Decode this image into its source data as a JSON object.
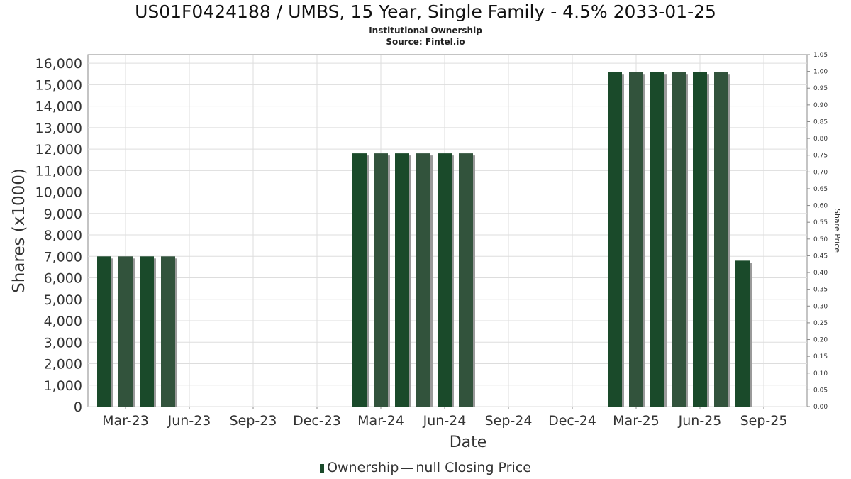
{
  "header": {
    "title": "US01F0424188 / UMBS, 15 Year, Single Family - 4.5% 2033-01-25",
    "subtitle": "Institutional Ownership",
    "source": "Source: Fintel.io"
  },
  "legend": {
    "ownership_label": "Ownership",
    "price_label": "null Closing Price"
  },
  "colors": {
    "bar_dark": "#1a4a2a",
    "bar_light": "#32533c",
    "bar_shadow": "#9a9a9a",
    "grid": "#dddddd",
    "axis": "#888888"
  },
  "chart_data": {
    "type": "bar",
    "title": "US01F0424188 / UMBS, 15 Year, Single Family - 4.5% 2033-01-25",
    "xlabel": "Date",
    "ylabel": "Shares (x1000)",
    "y2label": "Share Price",
    "ylim": [
      0,
      16400
    ],
    "y2lim": [
      0,
      1.05
    ],
    "grid": true,
    "legend_position": "bottom",
    "x_ticks": [
      "Mar-23",
      "Jun-23",
      "Sep-23",
      "Dec-23",
      "Mar-24",
      "Jun-24",
      "Sep-24",
      "Dec-24",
      "Mar-25",
      "Jun-25",
      "Sep-25"
    ],
    "y_ticks": [
      "0",
      "1,000",
      "2,000",
      "3,000",
      "4,000",
      "5,000",
      "6,000",
      "7,000",
      "8,000",
      "9,000",
      "10,000",
      "11,000",
      "12,000",
      "13,000",
      "14,000",
      "15,000",
      "16,000"
    ],
    "y2_ticks": [
      "0.00",
      "0.05",
      "0.10",
      "0.15",
      "0.20",
      "0.25",
      "0.30",
      "0.35",
      "0.40",
      "0.45",
      "0.50",
      "0.55",
      "0.60",
      "0.65",
      "0.70",
      "0.75",
      "0.80",
      "0.85",
      "0.90",
      "0.95",
      "1.00",
      "1.05"
    ],
    "series": [
      {
        "name": "Ownership",
        "x": [
          "2023-02",
          "2023-03",
          "2023-04",
          "2023-05",
          "2024-02",
          "2024-03",
          "2024-04",
          "2024-05",
          "2024-06",
          "2024-07",
          "2025-02",
          "2025-03",
          "2025-04",
          "2025-05",
          "2025-06",
          "2025-07",
          "2025-08"
        ],
        "values": [
          7000,
          7000,
          7000,
          7000,
          11800,
          11800,
          11800,
          11800,
          11800,
          11800,
          15600,
          15600,
          15600,
          15600,
          15600,
          15600,
          6800
        ]
      }
    ]
  }
}
